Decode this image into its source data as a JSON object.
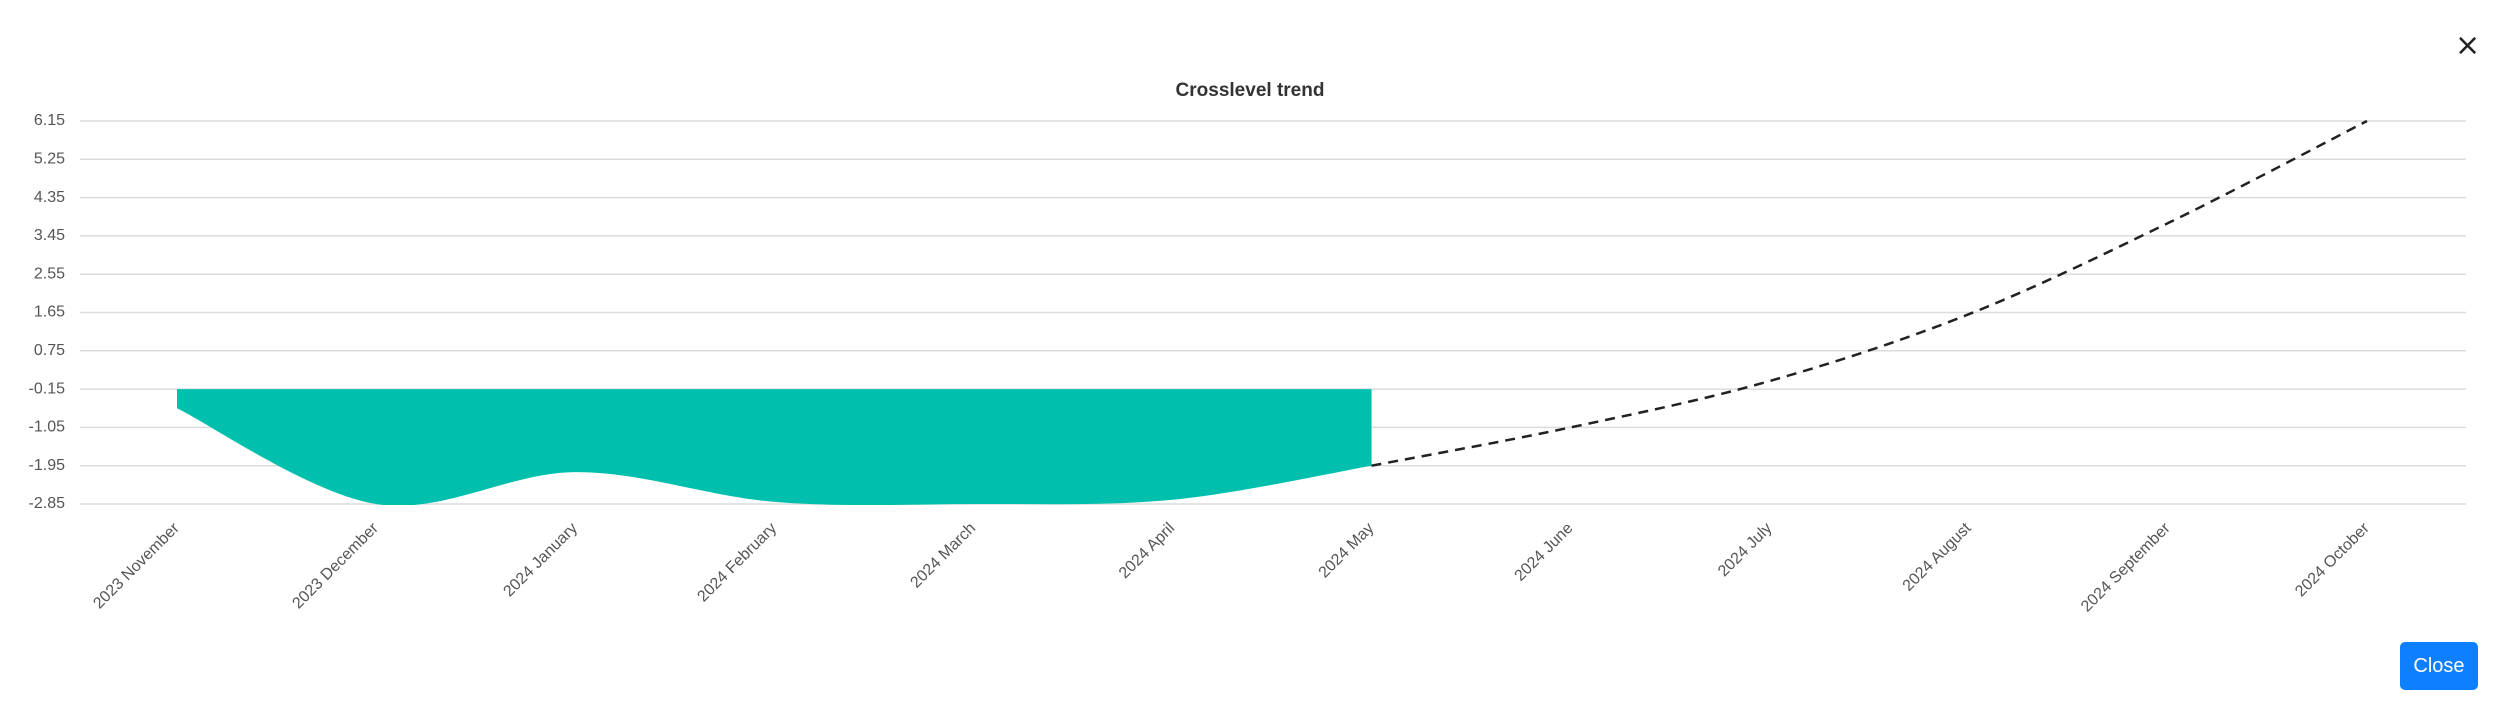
{
  "chart_data": {
    "type": "area",
    "title": "Crosslevel trend",
    "categories": [
      "2023 November",
      "2023 December",
      "2024 January",
      "2024 February",
      "2024 March",
      "2024 April",
      "2024 May",
      "2024 June",
      "2024 July",
      "2024 August",
      "2024 September",
      "2024 October"
    ],
    "series": [
      {
        "style": "area",
        "color": "#00bfad",
        "values": [
          -0.6,
          -2.85,
          -2.1,
          -2.8,
          -2.85,
          -2.75,
          -1.95,
          null,
          null,
          null,
          null,
          null
        ]
      },
      {
        "style": "dashed",
        "color": "#222222",
        "values": [
          null,
          null,
          null,
          null,
          null,
          null,
          -1.95,
          -1.05,
          0.04,
          1.61,
          3.75,
          6.15
        ]
      }
    ],
    "area_base": -0.15,
    "ylim": [
      -2.85,
      6.15
    ],
    "yticks": [
      -2.85,
      -1.95,
      -1.05,
      -0.15,
      0.75,
      1.65,
      2.55,
      3.45,
      4.35,
      5.25,
      6.15
    ],
    "grid": true
  },
  "close_button": "Close",
  "close_icon": "×"
}
